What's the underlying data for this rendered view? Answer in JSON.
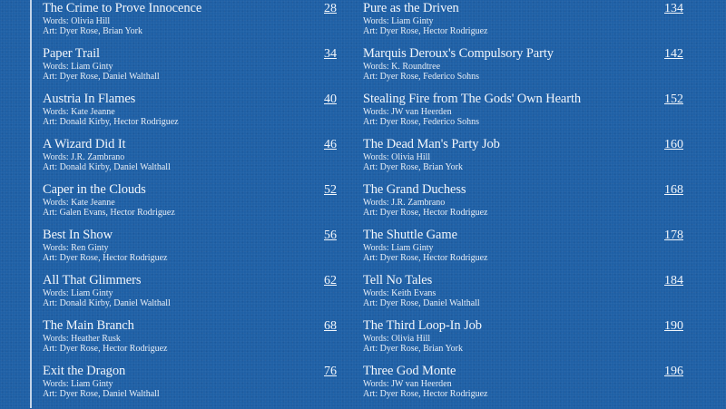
{
  "left_column": [
    {
      "title": "The Crime to Prove Innocence",
      "words": "Words: Olivia Hill",
      "art": "Art: Dyer Rose, Brian York",
      "page": "28"
    },
    {
      "title": "Paper Trail",
      "words": "Words: Liam Ginty",
      "art": "Art: Dyer Rose, Daniel Walthall",
      "page": "34"
    },
    {
      "title": "Austria In Flames",
      "words": "Words: Kate Jeanne",
      "art": "Art: Donald Kirby, Hector Rodriguez",
      "page": "40"
    },
    {
      "title": "A Wizard Did It",
      "words": "Words: J.R. Zambrano",
      "art": "Art: Donald Kirby, Daniel Walthall",
      "page": "46"
    },
    {
      "title": "Caper in the Clouds",
      "words": "Words: Kate Jeanne",
      "art": "Art: Galen Evans, Hector Rodriguez",
      "page": "52"
    },
    {
      "title": "Best In Show",
      "words": "Words: Ren Ginty",
      "art": "Art: Dyer Rose, Hector Rodriguez",
      "page": "56"
    },
    {
      "title": "All That Glimmers",
      "words": "Words: Liam Ginty",
      "art": "Art: Donald Kirby, Daniel Walthall",
      "page": "62"
    },
    {
      "title": "The Main Branch",
      "words": "Words: Heather Rusk",
      "art": "Art: Dyer Rose, Hector Rodriguez",
      "page": "68"
    },
    {
      "title": "Exit the Dragon",
      "words": "Words: Liam Ginty",
      "art": "Art: Dyer Rose, Daniel Walthall",
      "page": "76"
    }
  ],
  "right_column": [
    {
      "title": "Pure as the Driven",
      "words": "Words: Liam Ginty",
      "art": "Art: Dyer Rose, Hector Rodriguez",
      "page": "134"
    },
    {
      "title": "Marquis Deroux's Compulsory Party",
      "words": "Words: K. Roundtree",
      "art": "Art: Dyer Rose, Federico Sohns",
      "page": "142"
    },
    {
      "title": "Stealing Fire from The Gods' Own Hearth",
      "words": "Words: JW van Heerden",
      "art": "Art: Dyer Rose, Federico Sohns",
      "page": "152"
    },
    {
      "title": "The Dead Man's Party Job",
      "words": "Words: Olivia Hill",
      "art": "Art: Dyer Rose, Brian York",
      "page": "160"
    },
    {
      "title": "The Grand Duchess",
      "words": "Words: J.R. Zambrano",
      "art": "Art: Dyer Rose, Hector Rodriguez",
      "page": "168"
    },
    {
      "title": "The Shuttle Game",
      "words": "Words: Liam Ginty",
      "art": "Art: Dyer Rose, Hector Rodriguez",
      "page": "178"
    },
    {
      "title": "Tell No Tales",
      "words": "Words: Keith Evans",
      "art": "Art: Dyer Rose, Daniel Walthall",
      "page": "184"
    },
    {
      "title": "The Third Loop-In Job",
      "words": "Words: Olivia Hill",
      "art": "Art: Dyer Rose, Brian York",
      "page": "190"
    },
    {
      "title": "Three God Monte",
      "words": "Words: JW van Heerden",
      "art": "Art: Dyer Rose, Hector Rodriguez",
      "page": "196"
    }
  ],
  "colors": {
    "background": "#1f60a6",
    "text": "#f2f6fb"
  }
}
